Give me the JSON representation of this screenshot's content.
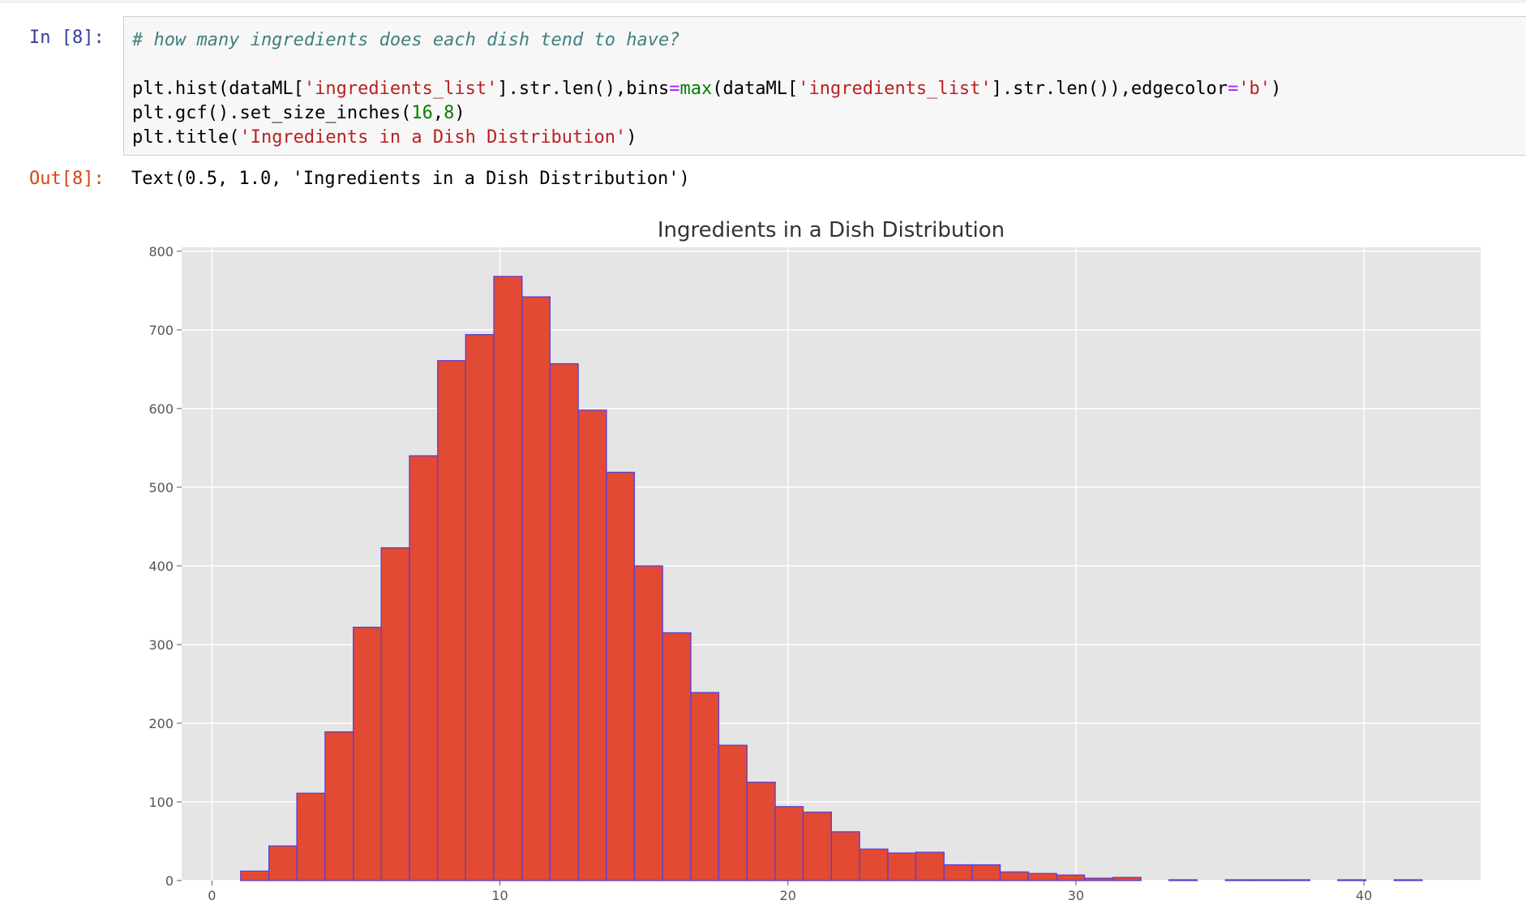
{
  "cell_in": {
    "prompt": "In [8]:",
    "code": [
      [
        {
          "t": "# how many ingredients does each dish tend to have?",
          "c": "comment"
        }
      ],
      [],
      [
        {
          "t": "plt.hist(dataML[",
          "c": ""
        },
        {
          "t": "'ingredients_list'",
          "c": "str"
        },
        {
          "t": "].str.len(),bins",
          "c": ""
        },
        {
          "t": "=",
          "c": "op"
        },
        {
          "t": "max",
          "c": "builtin"
        },
        {
          "t": "(dataML[",
          "c": ""
        },
        {
          "t": "'ingredients_list'",
          "c": "str"
        },
        {
          "t": "].str.len()),edgecolor",
          "c": ""
        },
        {
          "t": "=",
          "c": "op"
        },
        {
          "t": "'b'",
          "c": "str"
        },
        {
          "t": ")",
          "c": ""
        }
      ],
      [
        {
          "t": "plt.gcf().set_size_inches(",
          "c": ""
        },
        {
          "t": "16",
          "c": "num"
        },
        {
          "t": ",",
          "c": ""
        },
        {
          "t": "8",
          "c": "num"
        },
        {
          "t": ")",
          "c": ""
        }
      ],
      [
        {
          "t": "plt.title(",
          "c": ""
        },
        {
          "t": "'Ingredients in a Dish Distribution'",
          "c": "str"
        },
        {
          "t": ")",
          "c": ""
        }
      ]
    ]
  },
  "cell_out": {
    "prompt": "Out[8]:",
    "text": "Text(0.5, 1.0, 'Ingredients in a Dish Distribution')"
  },
  "chart_data": {
    "type": "bar",
    "title": "Ingredients in a Dish Distribution",
    "xlabel": "",
    "ylabel": "",
    "xlim": [
      -1.05,
      44.05
    ],
    "ylim": [
      0,
      805
    ],
    "xticks": [
      0,
      10,
      20,
      30,
      40
    ],
    "yticks": [
      0,
      100,
      200,
      300,
      400,
      500,
      600,
      700,
      800
    ],
    "grid": true,
    "bar_color": "#e24a33",
    "edge_color": "#5b3fd6",
    "background": "#e5e5e5",
    "bins": [
      {
        "x0": 1.0,
        "x1": 1.98,
        "value": 12
      },
      {
        "x0": 1.98,
        "x1": 2.95,
        "value": 44
      },
      {
        "x0": 2.95,
        "x1": 3.93,
        "value": 111
      },
      {
        "x0": 3.93,
        "x1": 4.91,
        "value": 189
      },
      {
        "x0": 4.91,
        "x1": 5.88,
        "value": 322
      },
      {
        "x0": 5.88,
        "x1": 6.86,
        "value": 423
      },
      {
        "x0": 6.86,
        "x1": 7.84,
        "value": 540
      },
      {
        "x0": 7.84,
        "x1": 8.81,
        "value": 661
      },
      {
        "x0": 8.81,
        "x1": 9.79,
        "value": 694
      },
      {
        "x0": 9.79,
        "x1": 10.77,
        "value": 768
      },
      {
        "x0": 10.77,
        "x1": 11.74,
        "value": 742
      },
      {
        "x0": 11.74,
        "x1": 12.72,
        "value": 657
      },
      {
        "x0": 12.72,
        "x1": 13.7,
        "value": 598
      },
      {
        "x0": 13.7,
        "x1": 14.67,
        "value": 519
      },
      {
        "x0": 14.67,
        "x1": 15.65,
        "value": 400
      },
      {
        "x0": 15.65,
        "x1": 16.63,
        "value": 315
      },
      {
        "x0": 16.63,
        "x1": 17.6,
        "value": 239
      },
      {
        "x0": 17.6,
        "x1": 18.58,
        "value": 172
      },
      {
        "x0": 18.58,
        "x1": 19.56,
        "value": 125
      },
      {
        "x0": 19.56,
        "x1": 20.53,
        "value": 94
      },
      {
        "x0": 20.53,
        "x1": 21.51,
        "value": 87
      },
      {
        "x0": 21.51,
        "x1": 22.49,
        "value": 62
      },
      {
        "x0": 22.49,
        "x1": 23.47,
        "value": 40
      },
      {
        "x0": 23.47,
        "x1": 24.44,
        "value": 35
      },
      {
        "x0": 24.44,
        "x1": 25.42,
        "value": 36
      },
      {
        "x0": 25.42,
        "x1": 26.4,
        "value": 20
      },
      {
        "x0": 26.4,
        "x1": 27.37,
        "value": 20
      },
      {
        "x0": 27.37,
        "x1": 28.35,
        "value": 11
      },
      {
        "x0": 28.35,
        "x1": 29.33,
        "value": 9
      },
      {
        "x0": 29.33,
        "x1": 30.3,
        "value": 7
      },
      {
        "x0": 30.3,
        "x1": 31.28,
        "value": 3
      },
      {
        "x0": 31.28,
        "x1": 32.26,
        "value": 4
      },
      {
        "x0": 33.23,
        "x1": 34.21,
        "value": 1
      },
      {
        "x0": 35.19,
        "x1": 36.16,
        "value": 1
      },
      {
        "x0": 36.16,
        "x1": 37.14,
        "value": 1
      },
      {
        "x0": 37.14,
        "x1": 38.12,
        "value": 1
      },
      {
        "x0": 39.09,
        "x1": 40.07,
        "value": 1
      },
      {
        "x0": 41.05,
        "x1": 42.02,
        "value": 1
      }
    ]
  }
}
